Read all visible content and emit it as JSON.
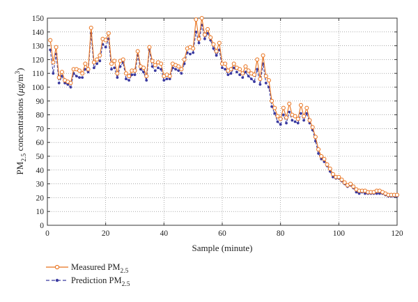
{
  "chart_data": {
    "type": "line",
    "title": "",
    "xlabel": "Sample (minute)",
    "ylabel": {
      "prefix": "PM",
      "sub": "2.5",
      "middle": " concentrations (",
      "unit_mu": "μ",
      "unit_g": "g/m",
      "sup": "3",
      "close": ")"
    },
    "xlim": [
      0,
      120
    ],
    "ylim": [
      0,
      150
    ],
    "x_ticks": [
      0,
      20,
      40,
      60,
      80,
      100,
      120
    ],
    "y_ticks": [
      0,
      10,
      20,
      30,
      40,
      50,
      60,
      70,
      80,
      90,
      100,
      110,
      120,
      130,
      140,
      150
    ],
    "grid": true,
    "grid_style": "dotted",
    "legend_position": "bottom-left outside",
    "x": [
      1,
      2,
      3,
      4,
      5,
      6,
      7,
      8,
      9,
      10,
      11,
      12,
      13,
      14,
      15,
      16,
      17,
      18,
      19,
      20,
      21,
      22,
      23,
      24,
      25,
      26,
      27,
      28,
      29,
      30,
      31,
      32,
      33,
      34,
      35,
      36,
      37,
      38,
      39,
      40,
      41,
      42,
      43,
      44,
      45,
      46,
      47,
      48,
      49,
      50,
      51,
      52,
      53,
      54,
      55,
      56,
      57,
      58,
      59,
      60,
      61,
      62,
      63,
      64,
      65,
      66,
      67,
      68,
      69,
      70,
      71,
      72,
      73,
      74,
      75,
      76,
      77,
      78,
      79,
      80,
      81,
      82,
      83,
      84,
      85,
      86,
      87,
      88,
      89,
      90,
      91,
      92,
      93,
      94,
      95,
      96,
      97,
      98,
      99,
      100,
      101,
      102,
      103,
      104,
      105,
      106,
      107,
      108,
      109,
      110,
      111,
      112,
      113,
      114,
      115,
      116,
      117,
      118,
      119,
      120
    ],
    "series": [
      {
        "name": "Measured",
        "name_sub": "2.5",
        "color": "#e8701a",
        "marker": "open-circle",
        "line": "solid",
        "values": [
          134,
          118,
          129,
          107,
          111,
          105,
          104,
          103,
          113,
          113,
          112,
          110,
          117,
          113,
          143,
          118,
          120,
          123,
          135,
          134,
          139,
          117,
          119,
          110,
          119,
          120,
          110,
          108,
          112,
          112,
          126,
          115,
          114,
          108,
          129,
          119,
          116,
          118,
          117,
          108,
          109,
          108,
          117,
          116,
          115,
          113,
          120,
          128,
          129,
          128,
          149,
          135,
          150,
          138,
          142,
          136,
          131,
          126,
          132,
          117,
          117,
          112,
          113,
          117,
          114,
          113,
          110,
          115,
          112,
          110,
          109,
          120,
          106,
          123,
          108,
          105,
          90,
          85,
          79,
          77,
          85,
          78,
          88,
          80,
          79,
          77,
          87,
          79,
          85,
          76,
          71,
          64,
          55,
          50,
          48,
          44,
          41,
          37,
          35,
          35,
          33,
          31,
          29,
          30,
          28,
          26,
          25,
          25,
          25,
          24,
          24,
          24,
          25,
          25,
          24,
          23,
          22,
          22,
          22,
          22
        ]
      },
      {
        "name": "Prediction",
        "name_sub": "2.5",
        "color": "#3a3aa0",
        "marker": "filled-dot",
        "line": "dashed",
        "values": [
          127,
          110,
          124,
          103,
          108,
          103,
          102,
          100,
          110,
          108,
          107,
          107,
          113,
          111,
          139,
          114,
          117,
          119,
          131,
          129,
          135,
          113,
          114,
          107,
          115,
          118,
          106,
          105,
          109,
          109,
          123,
          113,
          111,
          105,
          127,
          115,
          112,
          114,
          113,
          105,
          106,
          106,
          114,
          113,
          112,
          110,
          117,
          125,
          124,
          125,
          140,
          132,
          145,
          135,
          139,
          134,
          128,
          123,
          127,
          114,
          113,
          109,
          110,
          114,
          111,
          109,
          107,
          111,
          108,
          106,
          104,
          113,
          102,
          117,
          103,
          100,
          86,
          81,
          75,
          73,
          80,
          74,
          82,
          76,
          75,
          74,
          81,
          76,
          81,
          74,
          69,
          61,
          52,
          48,
          46,
          43,
          39,
          35,
          34,
          34,
          32,
          30,
          28,
          29,
          27,
          24,
          23,
          24,
          23,
          23,
          23,
          23,
          23,
          23,
          23,
          22,
          21,
          21,
          21,
          21
        ]
      }
    ],
    "legend": [
      {
        "label": "Measured PM",
        "sub": "2.5"
      },
      {
        "label": "Prediction PM",
        "sub": "2.5"
      }
    ]
  }
}
